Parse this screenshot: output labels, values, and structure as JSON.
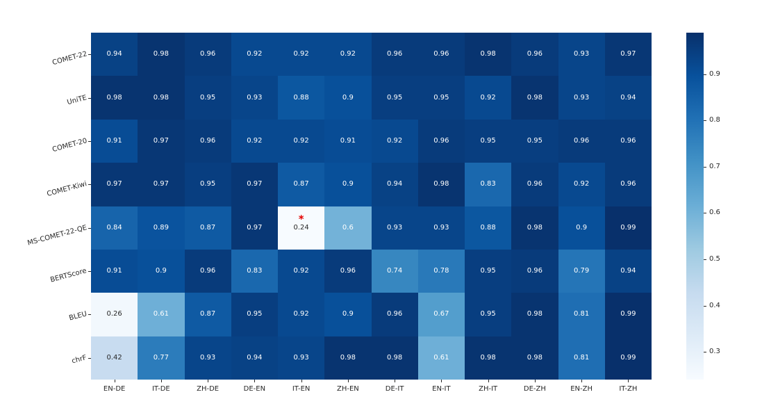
{
  "chart_data": {
    "type": "heatmap",
    "title": "",
    "xlabel": "",
    "ylabel": "",
    "colormap": "Blues",
    "vmin": 0.24,
    "vmax": 0.99,
    "grid": false,
    "legend_position": "right-colorbar",
    "columns": [
      "EN-DE",
      "IT-DE",
      "ZH-DE",
      "DE-EN",
      "IT-EN",
      "ZH-EN",
      "DE-IT",
      "EN-IT",
      "ZH-IT",
      "DE-ZH",
      "EN-ZH",
      "IT-ZH"
    ],
    "rows": [
      "COMET-22",
      "UniTE",
      "COMET-20",
      "COMET-Kiwi",
      "MS-COMET-22-QE",
      "BERTScore",
      "BLEU",
      "chrF"
    ],
    "values": [
      [
        0.94,
        0.98,
        0.96,
        0.92,
        0.92,
        0.92,
        0.96,
        0.96,
        0.98,
        0.96,
        0.93,
        0.97
      ],
      [
        0.98,
        0.98,
        0.95,
        0.93,
        0.88,
        0.9,
        0.95,
        0.95,
        0.92,
        0.98,
        0.93,
        0.94
      ],
      [
        0.91,
        0.97,
        0.96,
        0.92,
        0.92,
        0.91,
        0.92,
        0.96,
        0.95,
        0.95,
        0.96,
        0.96
      ],
      [
        0.97,
        0.97,
        0.95,
        0.97,
        0.87,
        0.9,
        0.94,
        0.98,
        0.83,
        0.96,
        0.92,
        0.96
      ],
      [
        0.84,
        0.89,
        0.87,
        0.97,
        0.24,
        0.6,
        0.93,
        0.93,
        0.88,
        0.98,
        0.9,
        0.99
      ],
      [
        0.91,
        0.9,
        0.96,
        0.83,
        0.92,
        0.96,
        0.74,
        0.78,
        0.95,
        0.96,
        0.79,
        0.94
      ],
      [
        0.26,
        0.61,
        0.87,
        0.95,
        0.92,
        0.9,
        0.96,
        0.67,
        0.95,
        0.98,
        0.81,
        0.99
      ],
      [
        0.42,
        0.77,
        0.93,
        0.94,
        0.93,
        0.98,
        0.98,
        0.61,
        0.98,
        0.98,
        0.81,
        0.99
      ]
    ],
    "marker_annotation": {
      "symbol": "*",
      "color": "#e50000",
      "row_index": 4,
      "col_index": 4
    },
    "colorbar_ticks": [
      0.3,
      0.4,
      0.5,
      0.6,
      0.7,
      0.8,
      0.9
    ],
    "colors": {
      "blues_ramp": [
        "#f7fbff",
        "#deebf7",
        "#c6dbef",
        "#9ecae1",
        "#6baed6",
        "#4292c6",
        "#2171b5",
        "#08519c",
        "#08306b"
      ],
      "dark_text": "#262626",
      "light_text": "#ffffff",
      "axis_tick_color": "#262626",
      "background": "#ffffff"
    }
  }
}
